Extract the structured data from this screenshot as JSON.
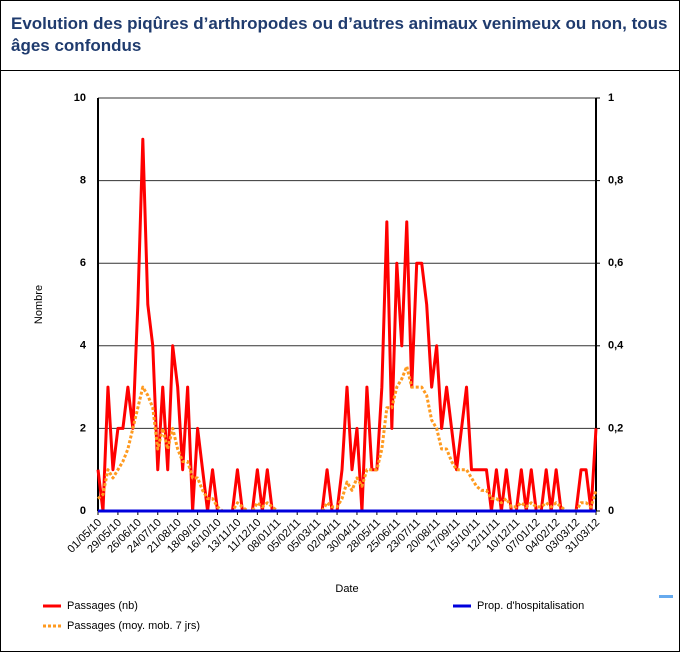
{
  "chart_data": {
    "type": "line",
    "title": "Evolution des piqûres d’arthropodes ou d’autres animaux venimeux ou non, tous âges confondus",
    "xlabel": "Date",
    "ylabel": "Nombre",
    "x": [
      0,
      7,
      14,
      21,
      28,
      35,
      42,
      49,
      56,
      63,
      70,
      77,
      84,
      91,
      98,
      105,
      112,
      119,
      126,
      133,
      140,
      147,
      154,
      161,
      168,
      175,
      182,
      189,
      196,
      203,
      210,
      217,
      224,
      231,
      238,
      245,
      252,
      259,
      266,
      273,
      280,
      287,
      294,
      301,
      308,
      315,
      322,
      329,
      336,
      343,
      350,
      357,
      364,
      371,
      378,
      385,
      392,
      399,
      406,
      413,
      420,
      427,
      434,
      441,
      448,
      455,
      462,
      469,
      476,
      483,
      490,
      497,
      504,
      511,
      518,
      525,
      532,
      539,
      546,
      553,
      560,
      567,
      574,
      581,
      588,
      595,
      602,
      609,
      616,
      623,
      630,
      637,
      644,
      651,
      658,
      665,
      672,
      679,
      686,
      693,
      700
    ],
    "xlim": [
      0,
      700
    ],
    "xticks": [
      {
        "value": 0,
        "label": "01/05/10"
      },
      {
        "value": 28,
        "label": "29/05/10"
      },
      {
        "value": 56,
        "label": "26/06/10"
      },
      {
        "value": 84,
        "label": "24/07/10"
      },
      {
        "value": 112,
        "label": "21/08/10"
      },
      {
        "value": 140,
        "label": "18/09/10"
      },
      {
        "value": 168,
        "label": "16/10/10"
      },
      {
        "value": 196,
        "label": "13/11/10"
      },
      {
        "value": 224,
        "label": "11/12/10"
      },
      {
        "value": 252,
        "label": "08/01/11"
      },
      {
        "value": 280,
        "label": "05/02/11"
      },
      {
        "value": 308,
        "label": "05/03/11"
      },
      {
        "value": 336,
        "label": "02/04/11"
      },
      {
        "value": 364,
        "label": "30/04/11"
      },
      {
        "value": 392,
        "label": "28/05/11"
      },
      {
        "value": 420,
        "label": "25/06/11"
      },
      {
        "value": 448,
        "label": "23/07/11"
      },
      {
        "value": 476,
        "label": "20/08/11"
      },
      {
        "value": 504,
        "label": "17/09/11"
      },
      {
        "value": 532,
        "label": "15/10/11"
      },
      {
        "value": 560,
        "label": "12/11/11"
      },
      {
        "value": 588,
        "label": "10/12/11"
      },
      {
        "value": 616,
        "label": "07/01/12"
      },
      {
        "value": 644,
        "label": "04/02/12"
      },
      {
        "value": 672,
        "label": "03/03/12"
      },
      {
        "value": 700,
        "label": "31/03/12"
      }
    ],
    "ylim": [
      0,
      10
    ],
    "yticks": [
      0,
      2,
      4,
      6,
      8,
      10
    ],
    "y2lim": [
      0,
      1
    ],
    "y2ticks": [
      0,
      {
        "value": 0.2,
        "label": "0,2"
      },
      {
        "value": 0.4,
        "label": "0,4"
      },
      {
        "value": 0.6,
        "label": "0,6"
      },
      {
        "value": 0.8,
        "label": "0,8"
      },
      1
    ],
    "grid": true,
    "series": [
      {
        "name": "Passages (nb)",
        "color": "#ff0000",
        "values": [
          1,
          0,
          3,
          1,
          2,
          2,
          3,
          2,
          5,
          9,
          5,
          4,
          1,
          3,
          1,
          4,
          3,
          1,
          3,
          0,
          2,
          1,
          0,
          1,
          0,
          0,
          0,
          0,
          1,
          0,
          0,
          0,
          1,
          0,
          1,
          0,
          0,
          0,
          0,
          0,
          0,
          0,
          0,
          0,
          0,
          0,
          1,
          0,
          0,
          1,
          3,
          1,
          2,
          0,
          3,
          1,
          1,
          3,
          7,
          2,
          6,
          4,
          7,
          3,
          6,
          6,
          5,
          3,
          4,
          2,
          3,
          2,
          1,
          2,
          3,
          1,
          1,
          1,
          1,
          0,
          1,
          0,
          1,
          0,
          0,
          1,
          0,
          1,
          0,
          0,
          1,
          0,
          1,
          0,
          0,
          0,
          0,
          1,
          1,
          0,
          2
        ]
      },
      {
        "name": "Passages (moy. mob. 7 jrs)",
        "color": "#ff9a1f",
        "values": [
          0.3,
          0.4,
          1,
          0.8,
          1,
          1.2,
          1.5,
          2,
          2.5,
          3,
          2.8,
          2.5,
          1.5,
          2,
          1.5,
          2,
          1.5,
          1.2,
          1.2,
          0.8,
          0.8,
          0.5,
          0.3,
          0.3,
          0.1,
          0,
          0,
          0,
          0.2,
          0.1,
          0,
          0,
          0.2,
          0.1,
          0.2,
          0.1,
          0,
          0,
          0,
          0,
          0,
          0,
          0,
          0,
          0,
          0,
          0.2,
          0.1,
          0.1,
          0.3,
          0.7,
          0.5,
          0.8,
          0.6,
          1,
          1,
          1,
          1.5,
          2.5,
          2.5,
          3,
          3.2,
          3.5,
          3,
          3,
          3,
          2.8,
          2.2,
          2,
          1.5,
          1.5,
          1.2,
          1,
          1,
          1,
          0.8,
          0.6,
          0.5,
          0.5,
          0.3,
          0.3,
          0.2,
          0.3,
          0.1,
          0.1,
          0.2,
          0.1,
          0.2,
          0.1,
          0.1,
          0.2,
          0.1,
          0.2,
          0.1,
          0,
          0,
          0,
          0.2,
          0.2,
          0.1,
          0.5
        ]
      },
      {
        "name": "Prop. d'hospitalisation",
        "color": "#0000dd",
        "axis": "y2",
        "values": [
          0,
          0,
          0,
          0,
          0,
          0,
          0,
          0,
          0,
          0,
          0,
          0,
          0,
          0,
          0,
          0,
          0,
          0,
          0,
          0,
          0,
          0,
          0,
          0,
          0,
          0,
          0,
          0,
          0,
          0,
          0,
          0,
          0,
          0,
          0,
          0,
          0,
          0,
          0,
          0,
          0,
          0,
          0,
          0,
          0,
          0,
          0,
          0,
          0,
          0,
          0,
          0,
          0,
          0,
          0,
          0,
          0,
          0,
          0,
          0,
          0,
          0,
          0,
          0,
          0,
          0,
          0,
          0,
          0,
          0,
          0,
          0,
          0,
          0,
          0,
          0,
          0,
          0,
          0,
          0,
          0,
          0,
          0,
          0,
          0,
          0,
          0,
          0,
          0,
          0,
          0,
          0,
          0,
          0,
          0,
          0,
          0,
          0,
          0,
          0,
          0
        ]
      }
    ]
  }
}
